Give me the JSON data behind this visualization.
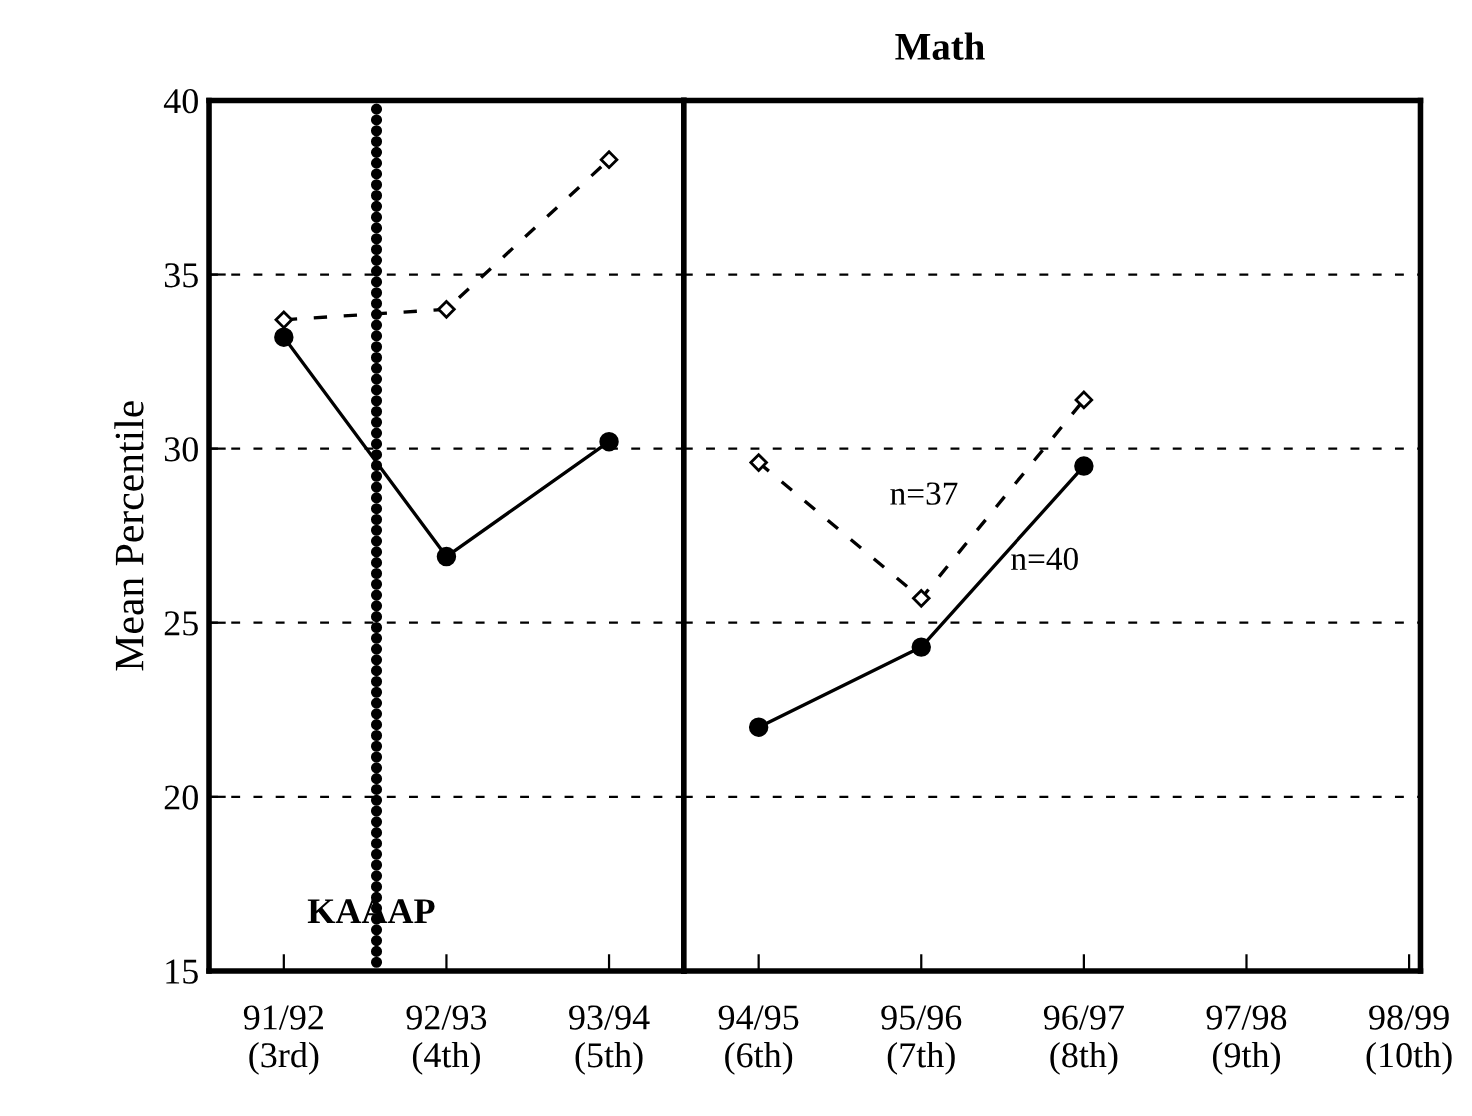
{
  "chart_data": [
    {
      "type": "line",
      "ylabel": "Mean Percentile",
      "categories": [
        "91/92\n(3rd)",
        "92/93\n(4th)",
        "93/94\n(5th)"
      ],
      "series": [
        {
          "color": "#000000",
          "line_style": "solid",
          "marker": "circle",
          "values": [
            33.2,
            26.9,
            30.2
          ]
        },
        {
          "color": "#000000",
          "line_style": "dashed",
          "marker": "diamond",
          "values": [
            33.7,
            34.0,
            38.3
          ]
        }
      ],
      "ylim": [
        15,
        40
      ],
      "yticks": [
        15,
        20,
        25,
        30,
        35,
        40
      ],
      "grid": "y",
      "annotations": [
        "KAAAP"
      ]
    },
    {
      "type": "line",
      "title": "Math",
      "categories": [
        "94/95\n(6th)",
        "95/96\n(7th)",
        "96/97\n(8th)",
        "97/98\n(9th)",
        "98/99\n(10th)"
      ],
      "series": [
        {
          "color": "#000000",
          "line_style": "solid",
          "marker": "circle",
          "values": [
            22.0,
            24.3,
            29.5,
            null,
            null
          ]
        },
        {
          "color": "#000000",
          "line_style": "dashed",
          "marker": "diamond",
          "values": [
            29.6,
            25.7,
            31.4,
            null,
            null
          ]
        }
      ],
      "ylim": [
        15,
        40
      ],
      "yticks": [
        15,
        20,
        25,
        30,
        35,
        40
      ],
      "grid": "y",
      "tick_labels": "x",
      "annotations": [
        "n=37",
        "n=40"
      ]
    }
  ]
}
